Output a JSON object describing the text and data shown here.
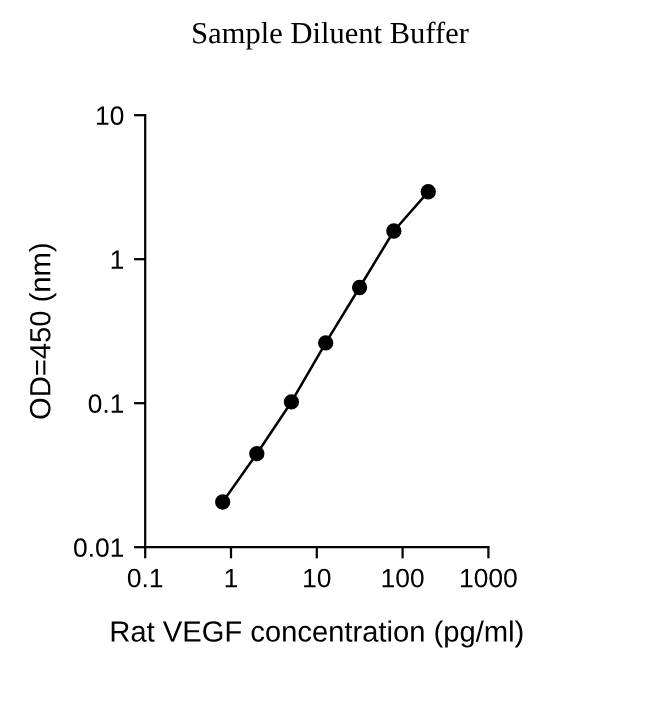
{
  "chart_data": {
    "type": "line",
    "title": "Sample Diluent Buffer",
    "xlabel": "Rat VEGF concentration (pg/ml)",
    "ylabel": "OD=450 (nm)",
    "x": [
      0.8,
      2.0,
      5.06,
      12.7,
      31.5,
      79,
      199
    ],
    "series": [
      {
        "color": "#000000",
        "values": [
          0.0206,
          0.0446,
          0.102,
          0.262,
          0.636,
          1.57,
          2.94
        ]
      }
    ],
    "log": "xy",
    "marker": "circle",
    "line_style": "solid",
    "grid": false,
    "legend": false,
    "xlim": [
      0.1,
      1000
    ],
    "xticks": [
      0.1,
      1,
      10,
      100,
      1000
    ],
    "ylim": [
      0.01,
      10
    ],
    "yticks": [
      0.01,
      0.1,
      1,
      10
    ]
  }
}
